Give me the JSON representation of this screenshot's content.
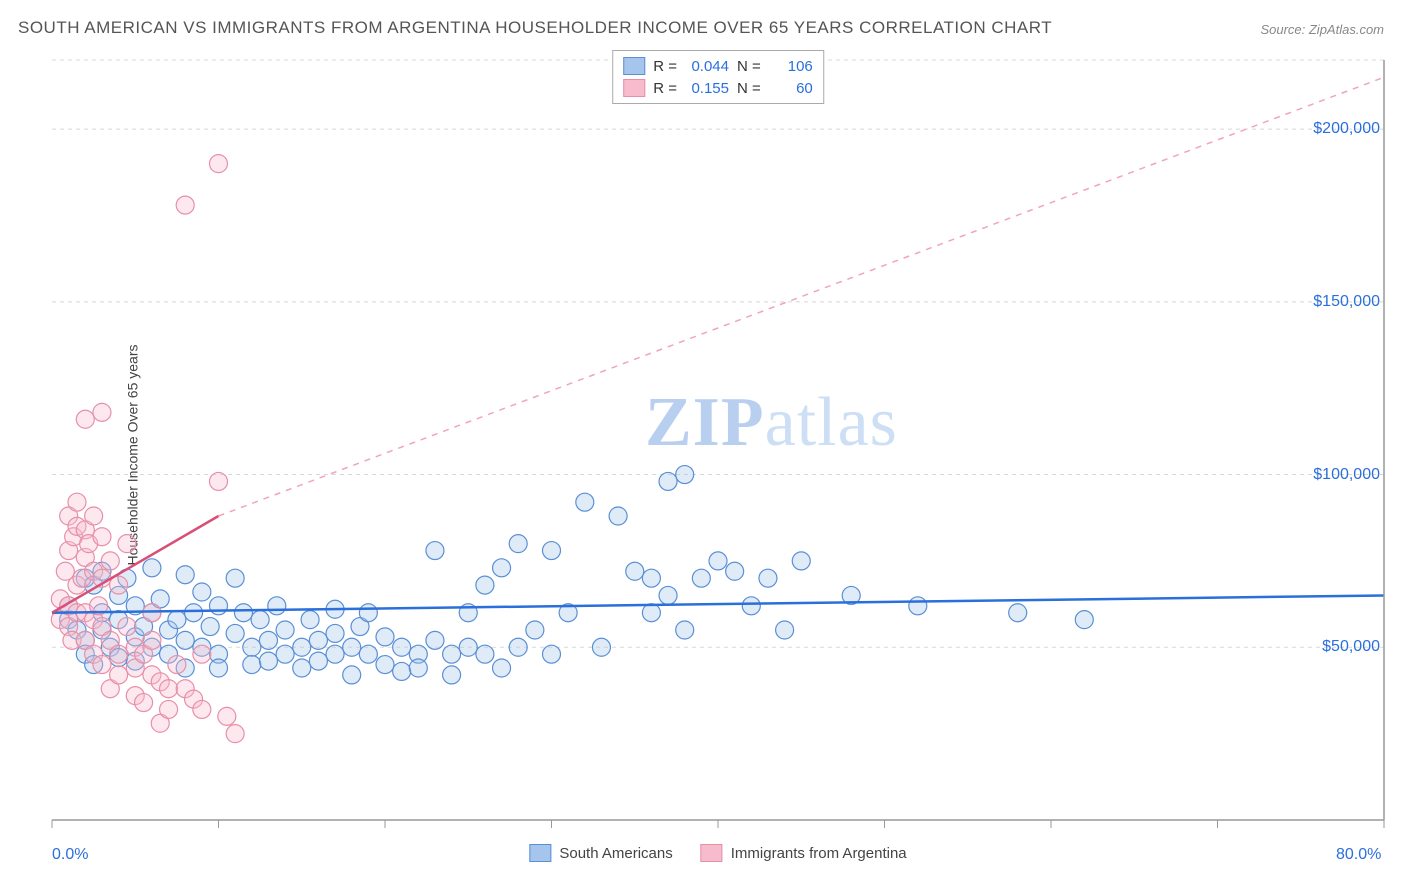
{
  "title": "SOUTH AMERICAN VS IMMIGRANTS FROM ARGENTINA HOUSEHOLDER INCOME OVER 65 YEARS CORRELATION CHART",
  "source": "Source: ZipAtlas.com",
  "watermark_bold": "ZIP",
  "watermark_rest": "atlas",
  "chart": {
    "type": "scatter",
    "ylabel": "Householder Income Over 65 years",
    "xlim": [
      0,
      80
    ],
    "ylim": [
      0,
      220000
    ],
    "xticks": [
      {
        "v": 0,
        "label": "0.0%"
      },
      {
        "v": 80,
        "label": "80.0%"
      }
    ],
    "yticks": [
      {
        "v": 50000,
        "label": "$50,000"
      },
      {
        "v": 100000,
        "label": "$100,000"
      },
      {
        "v": 150000,
        "label": "$150,000"
      },
      {
        "v": 200000,
        "label": "$200,000"
      }
    ],
    "xtick_positions_visual": [
      0,
      10,
      20,
      30,
      40,
      50,
      60,
      70,
      80
    ],
    "grid_dash": "4,4",
    "grid_color": "#d8d8d8",
    "axis_color": "#999",
    "background_color": "#ffffff",
    "marker_radius": 9,
    "marker_stroke_width": 1.2,
    "marker_fill_opacity": 0.35,
    "series": [
      {
        "name": "South Americans",
        "color_stroke": "#5a8fd6",
        "color_fill": "#a5c5ec",
        "R": "0.044",
        "N": "106",
        "trend": {
          "x1": 0,
          "y1": 60000,
          "x2": 80,
          "y2": 65000,
          "color": "#2a6fdb",
          "width": 2.5,
          "dash": "none"
        },
        "points": [
          [
            1,
            58
          ],
          [
            1,
            62
          ],
          [
            1.5,
            55
          ],
          [
            2,
            70
          ],
          [
            2,
            52
          ],
          [
            2,
            48
          ],
          [
            2.5,
            68
          ],
          [
            2.5,
            45
          ],
          [
            3,
            72
          ],
          [
            3,
            60
          ],
          [
            3,
            55
          ],
          [
            3.5,
            50
          ],
          [
            4,
            65
          ],
          [
            4,
            58
          ],
          [
            4,
            47
          ],
          [
            4.5,
            70
          ],
          [
            5,
            62
          ],
          [
            5,
            53
          ],
          [
            5,
            46
          ],
          [
            5.5,
            56
          ],
          [
            6,
            73
          ],
          [
            6,
            60
          ],
          [
            6,
            50
          ],
          [
            6.5,
            64
          ],
          [
            7,
            55
          ],
          [
            7,
            48
          ],
          [
            7.5,
            58
          ],
          [
            8,
            71
          ],
          [
            8,
            52
          ],
          [
            8,
            44
          ],
          [
            8.5,
            60
          ],
          [
            9,
            66
          ],
          [
            9,
            50
          ],
          [
            9.5,
            56
          ],
          [
            10,
            62
          ],
          [
            10,
            48
          ],
          [
            10,
            44
          ],
          [
            11,
            70
          ],
          [
            11,
            54
          ],
          [
            11.5,
            60
          ],
          [
            12,
            50
          ],
          [
            12,
            45
          ],
          [
            12.5,
            58
          ],
          [
            13,
            52
          ],
          [
            13,
            46
          ],
          [
            13.5,
            62
          ],
          [
            14,
            48
          ],
          [
            14,
            55
          ],
          [
            15,
            50
          ],
          [
            15,
            44
          ],
          [
            15.5,
            58
          ],
          [
            16,
            52
          ],
          [
            16,
            46
          ],
          [
            17,
            61
          ],
          [
            17,
            54
          ],
          [
            17,
            48
          ],
          [
            18,
            42
          ],
          [
            18,
            50
          ],
          [
            18.5,
            56
          ],
          [
            19,
            60
          ],
          [
            19,
            48
          ],
          [
            20,
            53
          ],
          [
            20,
            45
          ],
          [
            21,
            50
          ],
          [
            21,
            43
          ],
          [
            22,
            48
          ],
          [
            22,
            44
          ],
          [
            23,
            52
          ],
          [
            23,
            78
          ],
          [
            24,
            48
          ],
          [
            24,
            42
          ],
          [
            25,
            50
          ],
          [
            25,
            60
          ],
          [
            26,
            68
          ],
          [
            26,
            48
          ],
          [
            27,
            73
          ],
          [
            27,
            44
          ],
          [
            28,
            50
          ],
          [
            28,
            80
          ],
          [
            29,
            55
          ],
          [
            30,
            78
          ],
          [
            30,
            48
          ],
          [
            31,
            60
          ],
          [
            32,
            92
          ],
          [
            33,
            50
          ],
          [
            34,
            88
          ],
          [
            35,
            72
          ],
          [
            36,
            60
          ],
          [
            36,
            70
          ],
          [
            37,
            65
          ],
          [
            37,
            98
          ],
          [
            38,
            55
          ],
          [
            38,
            100
          ],
          [
            39,
            70
          ],
          [
            40,
            75
          ],
          [
            41,
            72
          ],
          [
            42,
            62
          ],
          [
            43,
            70
          ],
          [
            44,
            55
          ],
          [
            45,
            75
          ],
          [
            48,
            65
          ],
          [
            52,
            62
          ],
          [
            58,
            60
          ],
          [
            62,
            58
          ]
        ]
      },
      {
        "name": "Immigrants from Argentina",
        "color_stroke": "#e88fa8",
        "color_fill": "#f6bccd",
        "R": "0.155",
        "N": "60",
        "trend": {
          "x1": 0,
          "y1": 60000,
          "x2": 10,
          "y2": 88000,
          "color": "#d94f76",
          "width": 2.5,
          "dash": "none"
        },
        "trend_ext": {
          "x1": 10,
          "y1": 88000,
          "x2": 80,
          "y2": 215000,
          "color": "#f0a5b8",
          "width": 1.5,
          "dash": "6,6"
        },
        "points": [
          [
            0.5,
            58
          ],
          [
            0.5,
            64
          ],
          [
            0.8,
            72
          ],
          [
            1,
            56
          ],
          [
            1,
            62
          ],
          [
            1,
            78
          ],
          [
            1,
            88
          ],
          [
            1.2,
            52
          ],
          [
            1.3,
            82
          ],
          [
            1.5,
            85
          ],
          [
            1.5,
            60
          ],
          [
            1.5,
            68
          ],
          [
            1.5,
            92
          ],
          [
            1.8,
            70
          ],
          [
            2,
            84
          ],
          [
            2,
            76
          ],
          [
            2,
            116
          ],
          [
            2,
            60
          ],
          [
            2,
            52
          ],
          [
            2.2,
            80
          ],
          [
            2.5,
            88
          ],
          [
            2.5,
            72
          ],
          [
            2.5,
            58
          ],
          [
            2.5,
            48
          ],
          [
            2.8,
            62
          ],
          [
            3,
            82
          ],
          [
            3,
            70
          ],
          [
            3,
            56
          ],
          [
            3,
            45
          ],
          [
            3,
            118
          ],
          [
            3.5,
            75
          ],
          [
            3.5,
            52
          ],
          [
            3.5,
            38
          ],
          [
            4,
            68
          ],
          [
            4,
            48
          ],
          [
            4,
            42
          ],
          [
            4.5,
            56
          ],
          [
            4.5,
            80
          ],
          [
            5,
            50
          ],
          [
            5,
            44
          ],
          [
            5,
            36
          ],
          [
            5.5,
            48
          ],
          [
            5.5,
            34
          ],
          [
            6,
            60
          ],
          [
            6,
            52
          ],
          [
            6,
            42
          ],
          [
            6.5,
            40
          ],
          [
            6.5,
            28
          ],
          [
            7,
            38
          ],
          [
            7,
            32
          ],
          [
            7.5,
            45
          ],
          [
            8,
            38
          ],
          [
            8,
            178
          ],
          [
            8.5,
            35
          ],
          [
            9,
            48
          ],
          [
            9,
            32
          ],
          [
            10,
            98
          ],
          [
            10,
            190
          ],
          [
            10.5,
            30
          ],
          [
            11,
            25
          ]
        ]
      }
    ],
    "legend_bottom": [
      "South Americans",
      "Immigrants from Argentina"
    ]
  }
}
